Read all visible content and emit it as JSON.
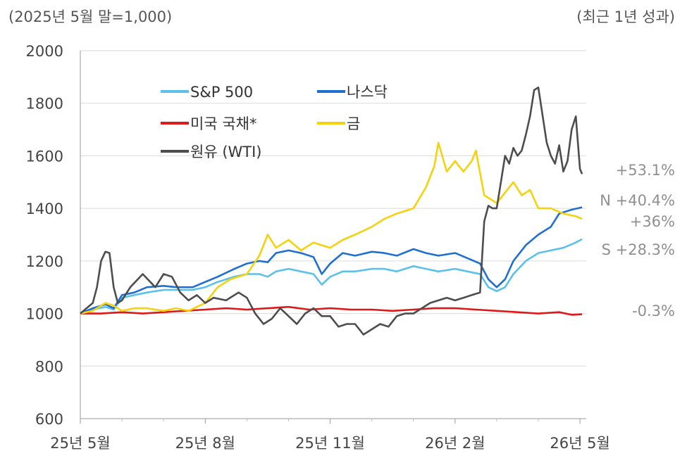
{
  "subtitle_left": "(2025년 5월 말=1,000)",
  "subtitle_right": "(최근 1년 성과)",
  "chart_data": {
    "type": "line",
    "ylim": [
      600,
      2000
    ],
    "yticks": [
      "2000",
      "1800",
      "1600",
      "1400",
      "1200",
      "1000",
      "800",
      "600"
    ],
    "xlim": [
      0,
      12.15
    ],
    "xticks": [
      {
        "x": 0,
        "label": "25년 5월"
      },
      {
        "x": 3,
        "label": "25년 8월"
      },
      {
        "x": 6,
        "label": "25년 11월"
      },
      {
        "x": 9,
        "label": "26년 2월"
      },
      {
        "x": 12,
        "label": "26년 5월"
      }
    ],
    "grid": true,
    "legend_position": "top-left",
    "series": [
      {
        "name": "S&P 500",
        "color": "#5bc0eb",
        "end_label": "S +28.3%",
        "points": [
          [
            0,
            1000
          ],
          [
            0.3,
            1015
          ],
          [
            0.6,
            1025
          ],
          [
            0.8,
            1015
          ],
          [
            1,
            1060
          ],
          [
            1.3,
            1070
          ],
          [
            1.6,
            1080
          ],
          [
            2,
            1090
          ],
          [
            2.3,
            1090
          ],
          [
            2.7,
            1090
          ],
          [
            3,
            1100
          ],
          [
            3.3,
            1120
          ],
          [
            3.7,
            1140
          ],
          [
            4,
            1150
          ],
          [
            4.3,
            1150
          ],
          [
            4.5,
            1140
          ],
          [
            4.7,
            1160
          ],
          [
            5,
            1170
          ],
          [
            5.3,
            1160
          ],
          [
            5.6,
            1150
          ],
          [
            5.8,
            1110
          ],
          [
            6,
            1140
          ],
          [
            6.3,
            1160
          ],
          [
            6.6,
            1160
          ],
          [
            7,
            1170
          ],
          [
            7.3,
            1170
          ],
          [
            7.6,
            1160
          ],
          [
            8,
            1180
          ],
          [
            8.3,
            1170
          ],
          [
            8.6,
            1160
          ],
          [
            9,
            1170
          ],
          [
            9.3,
            1160
          ],
          [
            9.6,
            1150
          ],
          [
            9.8,
            1100
          ],
          [
            10,
            1085
          ],
          [
            10.2,
            1100
          ],
          [
            10.4,
            1150
          ],
          [
            10.7,
            1200
          ],
          [
            11,
            1230
          ],
          [
            11.3,
            1240
          ],
          [
            11.6,
            1250
          ],
          [
            11.9,
            1270
          ],
          [
            12.05,
            1283
          ]
        ]
      },
      {
        "name": "나스닥",
        "color": "#1f6fd1",
        "end_label": "N +40.4%",
        "points": [
          [
            0,
            1000
          ],
          [
            0.3,
            1020
          ],
          [
            0.6,
            1035
          ],
          [
            0.8,
            1020
          ],
          [
            1,
            1070
          ],
          [
            1.3,
            1080
          ],
          [
            1.6,
            1100
          ],
          [
            2,
            1105
          ],
          [
            2.3,
            1100
          ],
          [
            2.7,
            1100
          ],
          [
            3,
            1120
          ],
          [
            3.3,
            1140
          ],
          [
            3.7,
            1170
          ],
          [
            4,
            1190
          ],
          [
            4.3,
            1200
          ],
          [
            4.5,
            1195
          ],
          [
            4.7,
            1230
          ],
          [
            5,
            1240
          ],
          [
            5.3,
            1230
          ],
          [
            5.6,
            1215
          ],
          [
            5.8,
            1150
          ],
          [
            6,
            1190
          ],
          [
            6.3,
            1230
          ],
          [
            6.6,
            1220
          ],
          [
            7,
            1235
          ],
          [
            7.3,
            1230
          ],
          [
            7.6,
            1220
          ],
          [
            8,
            1245
          ],
          [
            8.3,
            1230
          ],
          [
            8.6,
            1220
          ],
          [
            9,
            1230
          ],
          [
            9.3,
            1210
          ],
          [
            9.6,
            1190
          ],
          [
            9.8,
            1130
          ],
          [
            10,
            1100
          ],
          [
            10.2,
            1130
          ],
          [
            10.4,
            1200
          ],
          [
            10.7,
            1260
          ],
          [
            11,
            1300
          ],
          [
            11.3,
            1330
          ],
          [
            11.5,
            1380
          ],
          [
            11.8,
            1395
          ],
          [
            12.05,
            1404
          ]
        ]
      },
      {
        "name": "미국 국채*",
        "color": "#dd1a1a",
        "end_label": "-0.3%",
        "points": [
          [
            0,
            1000
          ],
          [
            0.5,
            1000
          ],
          [
            1,
            1005
          ],
          [
            1.5,
            1000
          ],
          [
            2,
            1005
          ],
          [
            2.5,
            1010
          ],
          [
            3,
            1015
          ],
          [
            3.5,
            1020
          ],
          [
            4,
            1015
          ],
          [
            4.5,
            1020
          ],
          [
            5,
            1025
          ],
          [
            5.5,
            1015
          ],
          [
            6,
            1020
          ],
          [
            6.5,
            1015
          ],
          [
            7,
            1015
          ],
          [
            7.5,
            1010
          ],
          [
            8,
            1015
          ],
          [
            8.5,
            1020
          ],
          [
            9,
            1020
          ],
          [
            9.5,
            1015
          ],
          [
            10,
            1010
          ],
          [
            10.5,
            1005
          ],
          [
            11,
            1000
          ],
          [
            11.5,
            1005
          ],
          [
            11.8,
            995
          ],
          [
            12.05,
            997
          ]
        ]
      },
      {
        "name": "금",
        "color": "#f5d20f",
        "end_label": "+36%",
        "points": [
          [
            0,
            1000
          ],
          [
            0.3,
            1010
          ],
          [
            0.6,
            1040
          ],
          [
            0.8,
            1030
          ],
          [
            1,
            1010
          ],
          [
            1.3,
            1020
          ],
          [
            1.6,
            1020
          ],
          [
            2,
            1010
          ],
          [
            2.3,
            1020
          ],
          [
            2.6,
            1010
          ],
          [
            3,
            1040
          ],
          [
            3.3,
            1100
          ],
          [
            3.6,
            1130
          ],
          [
            4,
            1150
          ],
          [
            4.3,
            1220
          ],
          [
            4.5,
            1300
          ],
          [
            4.7,
            1250
          ],
          [
            5,
            1280
          ],
          [
            5.3,
            1240
          ],
          [
            5.6,
            1270
          ],
          [
            6,
            1250
          ],
          [
            6.3,
            1280
          ],
          [
            6.6,
            1300
          ],
          [
            7,
            1330
          ],
          [
            7.3,
            1360
          ],
          [
            7.6,
            1380
          ],
          [
            8,
            1400
          ],
          [
            8.3,
            1480
          ],
          [
            8.5,
            1560
          ],
          [
            8.6,
            1650
          ],
          [
            8.8,
            1540
          ],
          [
            9,
            1580
          ],
          [
            9.2,
            1540
          ],
          [
            9.4,
            1580
          ],
          [
            9.5,
            1620
          ],
          [
            9.7,
            1450
          ],
          [
            10,
            1420
          ],
          [
            10.2,
            1460
          ],
          [
            10.4,
            1500
          ],
          [
            10.6,
            1450
          ],
          [
            10.8,
            1470
          ],
          [
            11,
            1400
          ],
          [
            11.3,
            1400
          ],
          [
            11.6,
            1380
          ],
          [
            11.9,
            1370
          ],
          [
            12.05,
            1360
          ]
        ]
      },
      {
        "name": "원유 (WTI)",
        "color": "#4d4d4d",
        "end_label": "+53.1%",
        "points": [
          [
            0,
            1000
          ],
          [
            0.3,
            1040
          ],
          [
            0.4,
            1100
          ],
          [
            0.5,
            1200
          ],
          [
            0.6,
            1235
          ],
          [
            0.7,
            1230
          ],
          [
            0.8,
            1100
          ],
          [
            0.9,
            1040
          ],
          [
            1,
            1050
          ],
          [
            1.2,
            1100
          ],
          [
            1.5,
            1150
          ],
          [
            1.8,
            1100
          ],
          [
            2,
            1150
          ],
          [
            2.2,
            1140
          ],
          [
            2.4,
            1080
          ],
          [
            2.6,
            1050
          ],
          [
            2.8,
            1070
          ],
          [
            3,
            1040
          ],
          [
            3.2,
            1060
          ],
          [
            3.5,
            1050
          ],
          [
            3.8,
            1080
          ],
          [
            4,
            1060
          ],
          [
            4.2,
            1000
          ],
          [
            4.4,
            960
          ],
          [
            4.6,
            980
          ],
          [
            4.8,
            1020
          ],
          [
            5,
            990
          ],
          [
            5.2,
            960
          ],
          [
            5.4,
            1000
          ],
          [
            5.6,
            1020
          ],
          [
            5.8,
            990
          ],
          [
            6,
            990
          ],
          [
            6.2,
            950
          ],
          [
            6.4,
            960
          ],
          [
            6.6,
            960
          ],
          [
            6.8,
            920
          ],
          [
            7,
            940
          ],
          [
            7.2,
            960
          ],
          [
            7.4,
            950
          ],
          [
            7.6,
            990
          ],
          [
            7.8,
            1000
          ],
          [
            8,
            1000
          ],
          [
            8.2,
            1020
          ],
          [
            8.4,
            1040
          ],
          [
            8.6,
            1050
          ],
          [
            8.8,
            1060
          ],
          [
            9,
            1050
          ],
          [
            9.2,
            1060
          ],
          [
            9.4,
            1070
          ],
          [
            9.6,
            1080
          ],
          [
            9.7,
            1350
          ],
          [
            9.8,
            1410
          ],
          [
            9.9,
            1400
          ],
          [
            10,
            1400
          ],
          [
            10.1,
            1500
          ],
          [
            10.2,
            1600
          ],
          [
            10.3,
            1570
          ],
          [
            10.4,
            1630
          ],
          [
            10.5,
            1600
          ],
          [
            10.6,
            1620
          ],
          [
            10.7,
            1680
          ],
          [
            10.8,
            1750
          ],
          [
            10.9,
            1850
          ],
          [
            11,
            1860
          ],
          [
            11.2,
            1650
          ],
          [
            11.3,
            1600
          ],
          [
            11.4,
            1570
          ],
          [
            11.5,
            1640
          ],
          [
            11.6,
            1540
          ],
          [
            11.7,
            1580
          ],
          [
            11.8,
            1700
          ],
          [
            11.9,
            1750
          ],
          [
            12,
            1550
          ],
          [
            12.05,
            1531
          ]
        ]
      }
    ]
  }
}
